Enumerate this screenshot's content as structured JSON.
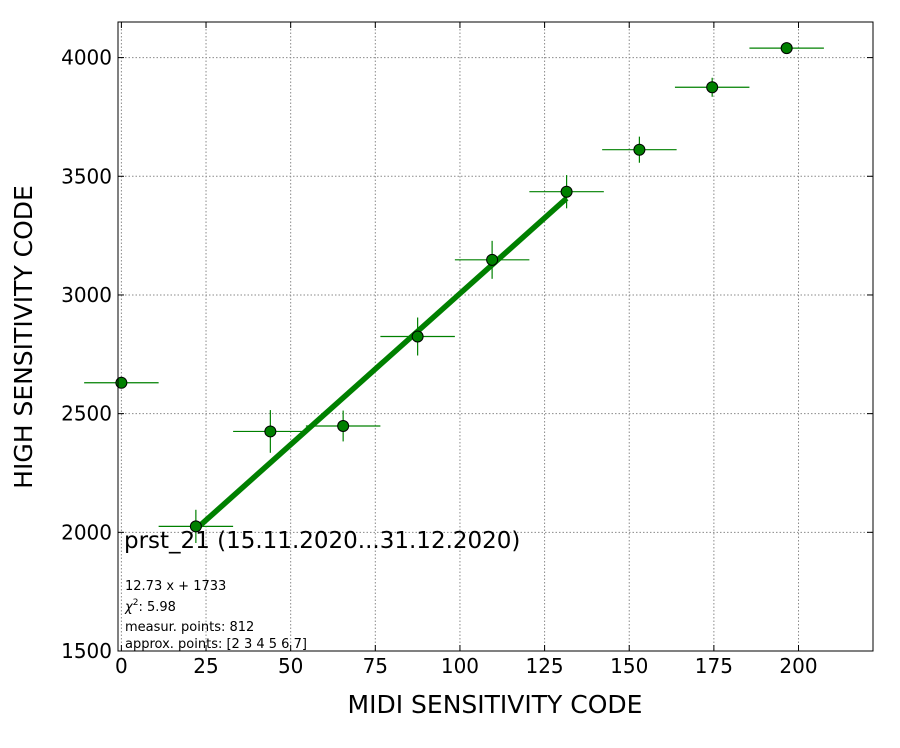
{
  "chart_data": {
    "type": "scatter",
    "xlabel": "MIDI SENSITIVITY CODE",
    "ylabel": "HIGH SENSITIVITY CODE",
    "xlim": [
      -1,
      222
    ],
    "ylim": [
      1500,
      4150
    ],
    "xticks": [
      0,
      25,
      50,
      75,
      100,
      125,
      150,
      175,
      200
    ],
    "yticks": [
      1500,
      2000,
      2500,
      3000,
      3500,
      4000
    ],
    "grid": true,
    "marker_color": "#008000",
    "line_color": "#008000",
    "points": [
      {
        "x": 0,
        "y": 2630,
        "xerr": 11,
        "yerr": 0
      },
      {
        "x": 22,
        "y": 2025,
        "xerr": 11,
        "yerr": 70
      },
      {
        "x": 44,
        "y": 2425,
        "xerr": 11,
        "yerr": 90
      },
      {
        "x": 65.5,
        "y": 2448,
        "xerr": 11,
        "yerr": 65
      },
      {
        "x": 87.5,
        "y": 2825,
        "xerr": 11,
        "yerr": 80
      },
      {
        "x": 109.5,
        "y": 3148,
        "xerr": 11,
        "yerr": 80
      },
      {
        "x": 131.5,
        "y": 3435,
        "xerr": 11,
        "yerr": 70
      },
      {
        "x": 153,
        "y": 3612,
        "xerr": 11,
        "yerr": 55
      },
      {
        "x": 174.5,
        "y": 3875,
        "xerr": 11,
        "yerr": 40
      },
      {
        "x": 196.5,
        "y": 4040,
        "xerr": 11,
        "yerr": 0
      }
    ],
    "fit": {
      "slope": 12.73,
      "intercept": 1733,
      "x_range": [
        22,
        131.5
      ]
    },
    "annotation": {
      "title": "prst_21 (15.11.2020...31.12.2020)",
      "equation": "12.73 x + 1733",
      "chi2_symbol": "χ",
      "chi2_power": "2",
      "chi2_value": ": 5.98",
      "measur_points": "measur. points: 812",
      "approx_points": "approx. points: [2 3 4 5 6 7]"
    }
  }
}
